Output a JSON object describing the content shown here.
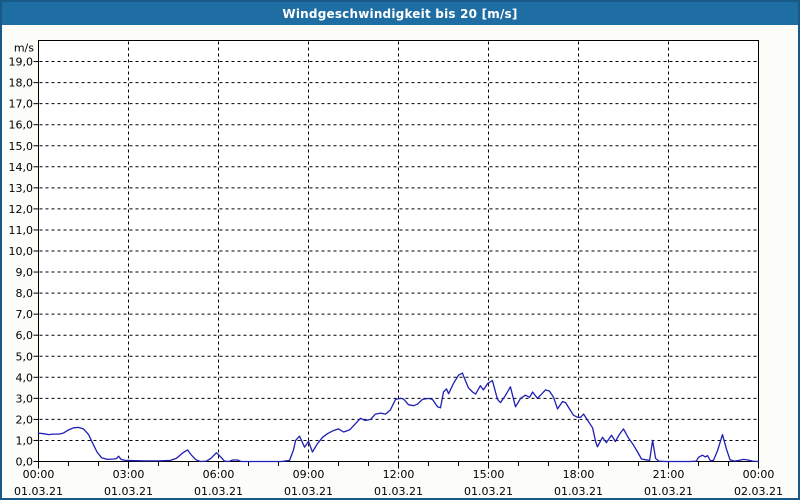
{
  "header": {
    "title": "Windgeschwindigkeit bis 20 [m/s]"
  },
  "colors": {
    "titlebar_bg": "#1e6da3",
    "titlebar_text": "#ffffff",
    "frame_border": "#175a88",
    "widget_bg": "#fcfcf8",
    "plot_bg": "#ffffff",
    "plot_border": "#000000",
    "grid": "#000000",
    "axis_text": "#000000",
    "line": "#1f1fb4"
  },
  "chart_data": {
    "type": "line",
    "title": "Windgeschwindigkeit bis 20 [m/s]",
    "ylabel": "m/s",
    "ylim": [
      0,
      20
    ],
    "xlim_hours": [
      0,
      24
    ],
    "grid": "dashed",
    "legend": "none",
    "y_ticks": [
      {
        "v": 0,
        "label": "0,0"
      },
      {
        "v": 1,
        "label": "1,0"
      },
      {
        "v": 2,
        "label": "2,0"
      },
      {
        "v": 3,
        "label": "3,0"
      },
      {
        "v": 4,
        "label": "4,0"
      },
      {
        "v": 5,
        "label": "5,0"
      },
      {
        "v": 6,
        "label": "6,0"
      },
      {
        "v": 7,
        "label": "7,0"
      },
      {
        "v": 8,
        "label": "8,0"
      },
      {
        "v": 9,
        "label": "9,0"
      },
      {
        "v": 10,
        "label": "10,0"
      },
      {
        "v": 11,
        "label": "11,0"
      },
      {
        "v": 12,
        "label": "12,0"
      },
      {
        "v": 13,
        "label": "13,0"
      },
      {
        "v": 14,
        "label": "14,0"
      },
      {
        "v": 15,
        "label": "15,0"
      },
      {
        "v": 16,
        "label": "16,0"
      },
      {
        "v": 17,
        "label": "17,0"
      },
      {
        "v": 18,
        "label": "18,0"
      },
      {
        "v": 19,
        "label": "19,0"
      }
    ],
    "x_ticks": [
      {
        "hour": 0,
        "time": "00:00",
        "date": "01.03.21"
      },
      {
        "hour": 3,
        "time": "03:00",
        "date": "01.03.21"
      },
      {
        "hour": 6,
        "time": "06:00",
        "date": "01.03.21"
      },
      {
        "hour": 9,
        "time": "09:00",
        "date": "01.03.21"
      },
      {
        "hour": 12,
        "time": "12:00",
        "date": "01.03.21"
      },
      {
        "hour": 15,
        "time": "15:00",
        "date": "01.03.21"
      },
      {
        "hour": 18,
        "time": "18:00",
        "date": "01.03.21"
      },
      {
        "hour": 21,
        "time": "21:00",
        "date": "01.03.21"
      },
      {
        "hour": 24,
        "time": "00:00",
        "date": "02.03.21"
      }
    ],
    "series": [
      {
        "name": "Windgeschwindigkeit",
        "points": [
          [
            0.0,
            1.35
          ],
          [
            0.17,
            1.32
          ],
          [
            0.33,
            1.28
          ],
          [
            0.5,
            1.3
          ],
          [
            0.67,
            1.3
          ],
          [
            0.83,
            1.35
          ],
          [
            1.0,
            1.5
          ],
          [
            1.17,
            1.6
          ],
          [
            1.33,
            1.62
          ],
          [
            1.5,
            1.55
          ],
          [
            1.67,
            1.28
          ],
          [
            1.83,
            0.8
          ],
          [
            1.95,
            0.45
          ],
          [
            2.1,
            0.18
          ],
          [
            2.3,
            0.1
          ],
          [
            2.5,
            0.12
          ],
          [
            2.6,
            0.14
          ],
          [
            2.67,
            0.25
          ],
          [
            2.75,
            0.1
          ],
          [
            2.9,
            0.05
          ],
          [
            3.2,
            0.04
          ],
          [
            3.6,
            0.03
          ],
          [
            4.0,
            0.03
          ],
          [
            4.4,
            0.05
          ],
          [
            4.6,
            0.15
          ],
          [
            4.8,
            0.4
          ],
          [
            4.97,
            0.55
          ],
          [
            5.1,
            0.3
          ],
          [
            5.25,
            0.08
          ],
          [
            5.4,
            0.0
          ],
          [
            5.6,
            0.02
          ],
          [
            5.75,
            0.15
          ],
          [
            5.93,
            0.42
          ],
          [
            6.05,
            0.25
          ],
          [
            6.2,
            0.02
          ],
          [
            6.35,
            0.0
          ],
          [
            6.47,
            0.07
          ],
          [
            6.63,
            0.07
          ],
          [
            6.75,
            0.0
          ],
          [
            7.2,
            0.0
          ],
          [
            7.7,
            0.0
          ],
          [
            8.1,
            0.0
          ],
          [
            8.37,
            0.05
          ],
          [
            8.5,
            0.55
          ],
          [
            8.57,
            1.0
          ],
          [
            8.7,
            1.2
          ],
          [
            8.87,
            0.68
          ],
          [
            9.0,
            0.96
          ],
          [
            9.13,
            0.45
          ],
          [
            9.3,
            0.85
          ],
          [
            9.47,
            1.15
          ],
          [
            9.63,
            1.32
          ],
          [
            9.83,
            1.47
          ],
          [
            10.0,
            1.55
          ],
          [
            10.17,
            1.4
          ],
          [
            10.37,
            1.5
          ],
          [
            10.57,
            1.8
          ],
          [
            10.73,
            2.05
          ],
          [
            10.9,
            1.95
          ],
          [
            11.07,
            2.0
          ],
          [
            11.23,
            2.25
          ],
          [
            11.4,
            2.3
          ],
          [
            11.57,
            2.25
          ],
          [
            11.73,
            2.45
          ],
          [
            11.9,
            2.95
          ],
          [
            12.07,
            3.0
          ],
          [
            12.17,
            2.97
          ],
          [
            12.33,
            2.7
          ],
          [
            12.5,
            2.65
          ],
          [
            12.63,
            2.72
          ],
          [
            12.8,
            2.95
          ],
          [
            13.0,
            3.0
          ],
          [
            13.13,
            2.95
          ],
          [
            13.3,
            2.6
          ],
          [
            13.4,
            2.55
          ],
          [
            13.5,
            3.3
          ],
          [
            13.6,
            3.45
          ],
          [
            13.67,
            3.22
          ],
          [
            13.83,
            3.7
          ],
          [
            14.0,
            4.1
          ],
          [
            14.13,
            4.2
          ],
          [
            14.23,
            3.85
          ],
          [
            14.33,
            3.5
          ],
          [
            14.47,
            3.3
          ],
          [
            14.57,
            3.2
          ],
          [
            14.73,
            3.6
          ],
          [
            14.83,
            3.4
          ],
          [
            14.97,
            3.7
          ],
          [
            15.13,
            3.85
          ],
          [
            15.3,
            2.95
          ],
          [
            15.4,
            2.8
          ],
          [
            15.57,
            3.15
          ],
          [
            15.73,
            3.55
          ],
          [
            15.9,
            2.6
          ],
          [
            16.07,
            3.0
          ],
          [
            16.23,
            3.15
          ],
          [
            16.37,
            3.05
          ],
          [
            16.47,
            3.3
          ],
          [
            16.63,
            3.0
          ],
          [
            16.77,
            3.2
          ],
          [
            16.9,
            3.4
          ],
          [
            17.03,
            3.35
          ],
          [
            17.17,
            3.05
          ],
          [
            17.3,
            2.5
          ],
          [
            17.47,
            2.85
          ],
          [
            17.57,
            2.8
          ],
          [
            17.7,
            2.5
          ],
          [
            17.83,
            2.2
          ],
          [
            17.97,
            2.1
          ],
          [
            18.07,
            2.1
          ],
          [
            18.17,
            2.25
          ],
          [
            18.33,
            1.9
          ],
          [
            18.47,
            1.6
          ],
          [
            18.57,
            0.95
          ],
          [
            18.63,
            0.7
          ],
          [
            18.8,
            1.15
          ],
          [
            18.93,
            0.9
          ],
          [
            19.1,
            1.25
          ],
          [
            19.23,
            0.95
          ],
          [
            19.37,
            1.3
          ],
          [
            19.5,
            1.55
          ],
          [
            19.67,
            1.1
          ],
          [
            19.8,
            0.85
          ],
          [
            19.97,
            0.45
          ],
          [
            20.1,
            0.12
          ],
          [
            20.25,
            0.08
          ],
          [
            20.37,
            0.05
          ],
          [
            20.47,
            1.0
          ],
          [
            20.57,
            0.15
          ],
          [
            20.67,
            0.02
          ],
          [
            20.9,
            0.0
          ],
          [
            21.3,
            0.0
          ],
          [
            21.7,
            0.0
          ],
          [
            21.93,
            0.02
          ],
          [
            22.0,
            0.2
          ],
          [
            22.13,
            0.3
          ],
          [
            22.23,
            0.22
          ],
          [
            22.3,
            0.28
          ],
          [
            22.4,
            0.03
          ],
          [
            22.5,
            0.06
          ],
          [
            22.63,
            0.5
          ],
          [
            22.8,
            1.28
          ],
          [
            22.93,
            0.6
          ],
          [
            23.05,
            0.08
          ],
          [
            23.2,
            0.02
          ],
          [
            23.35,
            0.05
          ],
          [
            23.5,
            0.1
          ],
          [
            23.65,
            0.07
          ],
          [
            23.8,
            0.02
          ],
          [
            24.0,
            0.0
          ]
        ]
      }
    ]
  }
}
